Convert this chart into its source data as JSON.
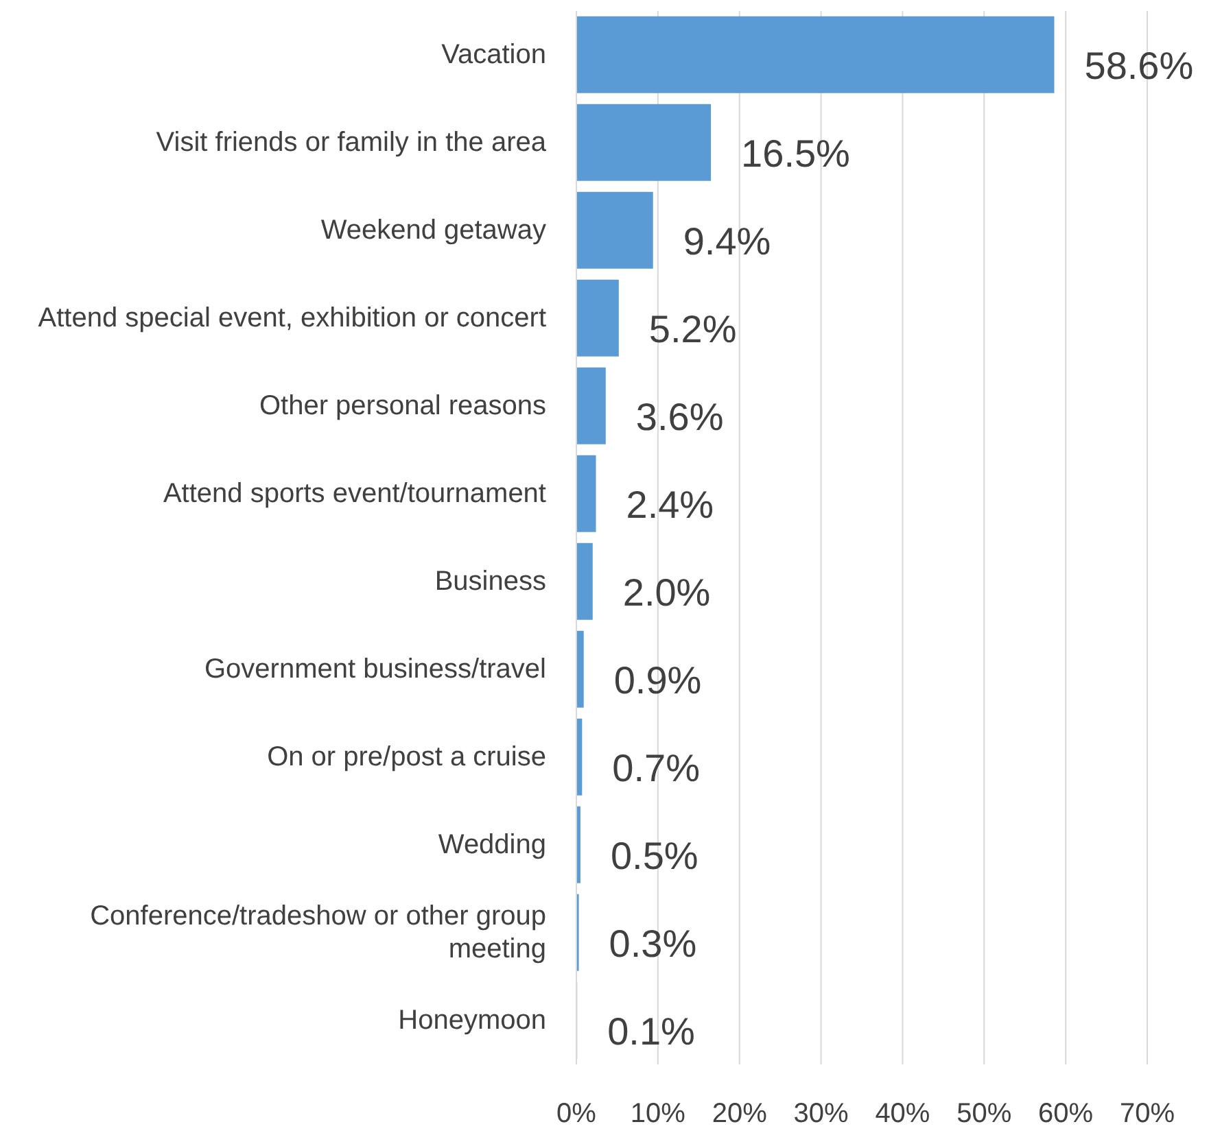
{
  "chart_data": {
    "type": "bar",
    "orientation": "horizontal",
    "categories": [
      "Vacation",
      "Visit friends or family in the area",
      "Weekend getaway",
      "Attend special event, exhibition or concert",
      "Other personal reasons",
      "Attend sports event/tournament",
      "Business",
      "Government business/travel",
      "On or pre/post a cruise",
      "Wedding",
      "Conference/tradeshow or other group meeting",
      "Honeymoon"
    ],
    "values": [
      58.6,
      16.5,
      9.4,
      5.2,
      3.6,
      2.4,
      2.0,
      0.9,
      0.7,
      0.5,
      0.3,
      0.1
    ],
    "value_labels": [
      "58.6%",
      "16.5%",
      "9.4%",
      "5.2%",
      "3.6%",
      "2.4%",
      "2.0%",
      "0.9%",
      "0.7%",
      "0.5%",
      "0.3%",
      "0.1%"
    ],
    "color": "#5b9bd5",
    "xlim": [
      0,
      70
    ],
    "xticks": [
      {
        "value": 0,
        "label": "0%"
      },
      {
        "value": 10,
        "label": "10%"
      },
      {
        "value": 20,
        "label": "20%"
      },
      {
        "value": 30,
        "label": "30%"
      },
      {
        "value": 40,
        "label": "40%"
      },
      {
        "value": 50,
        "label": "50%"
      },
      {
        "value": 60,
        "label": "60%"
      },
      {
        "value": 70,
        "label": "70%"
      }
    ],
    "grid": "x",
    "legend": false
  }
}
